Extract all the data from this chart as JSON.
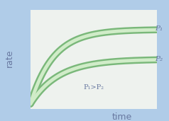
{
  "outer_bg": "#b0cce8",
  "inner_bg": "#eef2ee",
  "curve1_color_outer": "#7ab87a",
  "curve1_color_inner": "#d0ecc8",
  "curve2_color_outer": "#7ab87a",
  "curve2_color_inner": "#d0ecc8",
  "label_P1": "P₁",
  "label_P2": "P₂",
  "annotation": "P₁>P₂",
  "xlabel": "time",
  "ylabel": "rate",
  "label_color": "#6878a0"
}
